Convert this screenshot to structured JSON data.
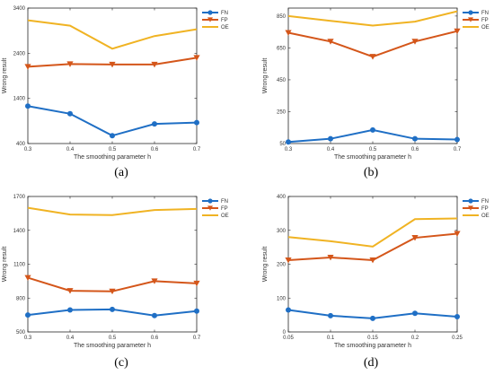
{
  "chart_data": [
    {
      "type": "line",
      "panel_label": "(a)",
      "xlabel": "The smoothing parameter h",
      "ylabel": "Wrong result",
      "x": [
        0.3,
        0.4,
        0.5,
        0.6,
        0.7
      ],
      "x_ticks": [
        "0.3",
        "0.4",
        "0.5",
        "0.6",
        "0.7"
      ],
      "ylim": [
        400,
        3400
      ],
      "y_ticks": [
        "400",
        "1400",
        "2400",
        "3400"
      ],
      "series": [
        {
          "name": "FN",
          "marker": "circle",
          "color": "#1f6fc5",
          "values": [
            1230,
            1060,
            575,
            835,
            865
          ]
        },
        {
          "name": "FP",
          "marker": "triangle-down",
          "color": "#d4561a",
          "values": [
            2100,
            2160,
            2150,
            2150,
            2300
          ]
        },
        {
          "name": "OE",
          "marker": "none",
          "color": "#f0b323",
          "values": [
            3130,
            3010,
            2500,
            2780,
            2930
          ]
        }
      ],
      "legend_position": "top-right"
    },
    {
      "type": "line",
      "panel_label": "(b)",
      "xlabel": "The smoothing parameter h",
      "ylabel": "Wrong result",
      "x": [
        0.3,
        0.4,
        0.5,
        0.6,
        0.7
      ],
      "x_ticks": [
        "0.3",
        "0.4",
        "0.5",
        "0.6",
        "0.7"
      ],
      "ylim": [
        50,
        900
      ],
      "y_ticks": [
        "50",
        "250",
        "450",
        "650",
        "850"
      ],
      "series": [
        {
          "name": "FN",
          "marker": "circle",
          "color": "#1f6fc5",
          "values": [
            60,
            80,
            135,
            80,
            75
          ]
        },
        {
          "name": "FP",
          "marker": "triangle-down",
          "color": "#d4561a",
          "values": [
            745,
            690,
            595,
            690,
            755
          ]
        },
        {
          "name": "OE",
          "marker": "none",
          "color": "#f0b323",
          "values": [
            850,
            820,
            790,
            815,
            880
          ]
        }
      ],
      "legend_position": "top-right"
    },
    {
      "type": "line",
      "panel_label": "(c)",
      "xlabel": "The smoothing parameter h",
      "ylabel": "Wrong result",
      "x": [
        0.3,
        0.4,
        0.5,
        0.6,
        0.7
      ],
      "x_ticks": [
        "0.3",
        "0.4",
        "0.5",
        "0.6",
        "0.7"
      ],
      "ylim": [
        500,
        1700
      ],
      "y_ticks": [
        "500",
        "800",
        "1100",
        "1400",
        "1700"
      ],
      "series": [
        {
          "name": "FN",
          "marker": "circle",
          "color": "#1f6fc5",
          "values": [
            650,
            695,
            700,
            645,
            685
          ]
        },
        {
          "name": "FP",
          "marker": "triangle-down",
          "color": "#d4561a",
          "values": [
            980,
            865,
            860,
            950,
            930
          ]
        },
        {
          "name": "OE",
          "marker": "none",
          "color": "#f0b323",
          "values": [
            1600,
            1540,
            1535,
            1580,
            1590
          ]
        }
      ],
      "legend_position": "top-right"
    },
    {
      "type": "line",
      "panel_label": "(d)",
      "xlabel": "The smoothing parameter h",
      "ylabel": "Wrong result",
      "x": [
        0.05,
        0.1,
        0.15,
        0.2,
        0.25
      ],
      "x_ticks": [
        "0.05",
        "0.1",
        "0.15",
        "0.2",
        "0.25"
      ],
      "ylim": [
        0,
        400
      ],
      "y_ticks": [
        "0",
        "100",
        "200",
        "300",
        "400"
      ],
      "series": [
        {
          "name": "FN",
          "marker": "circle",
          "color": "#1f6fc5",
          "values": [
            65,
            48,
            40,
            55,
            45
          ]
        },
        {
          "name": "FP",
          "marker": "triangle-down",
          "color": "#d4561a",
          "values": [
            212,
            220,
            212,
            278,
            290
          ]
        },
        {
          "name": "OE",
          "marker": "none",
          "color": "#f0b323",
          "values": [
            280,
            268,
            252,
            333,
            335
          ]
        }
      ],
      "legend_position": "top-right"
    }
  ]
}
